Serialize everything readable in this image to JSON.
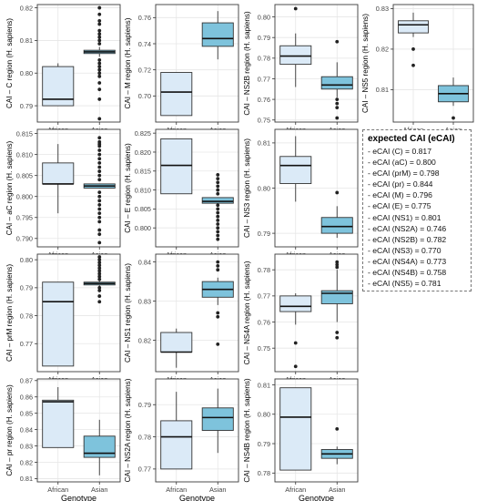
{
  "chart_data": [
    {
      "type": "box",
      "ylabel": "CAI – C region (H. sapiens)",
      "xlabel": "Genotype",
      "categories": [
        "African",
        "Asian"
      ],
      "ylim": [
        0.785,
        0.821
      ],
      "yticks": [
        0.79,
        0.8,
        0.81,
        0.82
      ],
      "tick_labels": [
        "0.79",
        "0.80",
        "0.81",
        "0.82"
      ],
      "series": [
        {
          "category": "African",
          "whislo": 0.79,
          "q1": 0.79,
          "median": 0.792,
          "q3": 0.802,
          "whishi": 0.803,
          "outliers": []
        },
        {
          "category": "Asian",
          "whislo": 0.805,
          "q1": 0.806,
          "median": 0.8065,
          "q3": 0.807,
          "whishi": 0.808,
          "outliers": [
            0.786,
            0.792,
            0.795,
            0.797,
            0.799,
            0.8,
            0.801,
            0.802,
            0.803,
            0.804,
            0.809,
            0.81,
            0.811,
            0.812,
            0.813,
            0.815,
            0.816,
            0.818,
            0.82
          ]
        }
      ]
    },
    {
      "type": "box",
      "ylabel": "CAI – M region (H. sapiens)",
      "xlabel": "Genotype",
      "categories": [
        "African",
        "Asian"
      ],
      "ylim": [
        0.68,
        0.77
      ],
      "yticks": [
        0.7,
        0.72,
        0.74,
        0.76
      ],
      "tick_labels": [
        "0.70",
        "0.72",
        "0.74",
        "0.76"
      ],
      "series": [
        {
          "category": "African",
          "whislo": 0.685,
          "q1": 0.685,
          "median": 0.703,
          "q3": 0.718,
          "whishi": 0.718,
          "outliers": []
        },
        {
          "category": "Asian",
          "whislo": 0.728,
          "q1": 0.738,
          "median": 0.744,
          "q3": 0.756,
          "whishi": 0.765,
          "outliers": []
        }
      ]
    },
    {
      "type": "box",
      "ylabel": "CAI – NS2B region (H. sapiens)",
      "xlabel": "Genotype",
      "categories": [
        "African",
        "Asian"
      ],
      "ylim": [
        0.749,
        0.806
      ],
      "yticks": [
        0.75,
        0.76,
        0.77,
        0.78,
        0.79,
        0.8
      ],
      "tick_labels": [
        "0.75",
        "0.76",
        "0.77",
        "0.78",
        "0.79",
        "0.80"
      ],
      "series": [
        {
          "category": "African",
          "whislo": 0.766,
          "q1": 0.777,
          "median": 0.781,
          "q3": 0.786,
          "whishi": 0.792,
          "outliers": [
            0.804
          ]
        },
        {
          "category": "Asian",
          "whislo": 0.761,
          "q1": 0.765,
          "median": 0.767,
          "q3": 0.771,
          "whishi": 0.778,
          "outliers": [
            0.788,
            0.76,
            0.758,
            0.756,
            0.751
          ]
        }
      ]
    },
    {
      "type": "box",
      "ylabel": "CAI – NS5 region (H. sapiens)",
      "xlabel": "Genotype",
      "categories": [
        "African",
        "Asian"
      ],
      "ylim": [
        0.802,
        0.831
      ],
      "yticks": [
        0.81,
        0.82,
        0.83
      ],
      "tick_labels": [
        "0.81",
        "0.82",
        "0.83"
      ],
      "series": [
        {
          "category": "African",
          "whislo": 0.823,
          "q1": 0.824,
          "median": 0.826,
          "q3": 0.827,
          "whishi": 0.829,
          "outliers": [
            0.82,
            0.816
          ]
        },
        {
          "category": "Asian",
          "whislo": 0.806,
          "q1": 0.807,
          "median": 0.809,
          "q3": 0.811,
          "whishi": 0.813,
          "outliers": [
            0.803
          ]
        }
      ]
    },
    {
      "type": "box",
      "ylabel": "CAI – aC region (H. sapiens)",
      "xlabel": "Genotype",
      "categories": [
        "African",
        "Asian"
      ],
      "ylim": [
        0.788,
        0.816
      ],
      "yticks": [
        0.79,
        0.795,
        0.8,
        0.805,
        0.81,
        0.815
      ],
      "tick_labels": [
        "0.790",
        "0.795",
        "0.800",
        "0.805",
        "0.810",
        "0.815"
      ],
      "series": [
        {
          "category": "African",
          "whislo": 0.796,
          "q1": 0.803,
          "median": 0.803,
          "q3": 0.808,
          "whishi": 0.8125,
          "outliers": []
        },
        {
          "category": "Asian",
          "whislo": 0.802,
          "q1": 0.802,
          "median": 0.8025,
          "q3": 0.803,
          "whishi": 0.803,
          "outliers": [
            0.789,
            0.791,
            0.792,
            0.794,
            0.795,
            0.796,
            0.797,
            0.798,
            0.799,
            0.8,
            0.801,
            0.804,
            0.805,
            0.806,
            0.807,
            0.808,
            0.809,
            0.81,
            0.811,
            0.812,
            0.8125,
            0.813,
            0.814
          ]
        }
      ]
    },
    {
      "type": "box",
      "ylabel": "CAI – E region (H. sapiens)",
      "xlabel": "Genotype",
      "categories": [
        "African",
        "Asian"
      ],
      "ylim": [
        0.795,
        0.826
      ],
      "yticks": [
        0.8,
        0.805,
        0.81,
        0.815,
        0.82,
        0.825
      ],
      "tick_labels": [
        "0.800",
        "0.805",
        "0.810",
        "0.815",
        "0.820",
        "0.825"
      ],
      "series": [
        {
          "category": "African",
          "whislo": 0.809,
          "q1": 0.809,
          "median": 0.8165,
          "q3": 0.8235,
          "whishi": 0.8235,
          "outliers": []
        },
        {
          "category": "Asian",
          "whislo": 0.8065,
          "q1": 0.8065,
          "median": 0.807,
          "q3": 0.808,
          "whishi": 0.808,
          "outliers": [
            0.797,
            0.798,
            0.799,
            0.8,
            0.801,
            0.802,
            0.803,
            0.804,
            0.805,
            0.806,
            0.809,
            0.81,
            0.811,
            0.812,
            0.813,
            0.814
          ]
        }
      ]
    },
    {
      "type": "box",
      "ylabel": "CAI – NS3 region (H. sapiens)",
      "xlabel": "Genotype",
      "categories": [
        "African",
        "Asian"
      ],
      "ylim": [
        0.787,
        0.813
      ],
      "yticks": [
        0.79,
        0.8,
        0.81
      ],
      "tick_labels": [
        "0.79",
        "0.80",
        "0.81"
      ],
      "series": [
        {
          "category": "African",
          "whislo": 0.797,
          "q1": 0.801,
          "median": 0.805,
          "q3": 0.807,
          "whishi": 0.8115,
          "outliers": []
        },
        {
          "category": "Asian",
          "whislo": 0.789,
          "q1": 0.79,
          "median": 0.7915,
          "q3": 0.7935,
          "whishi": 0.796,
          "outliers": [
            0.799
          ]
        }
      ]
    },
    {
      "type": "box",
      "ylabel": "CAI – prM region (H. sapiens)",
      "xlabel": "Genotype",
      "categories": [
        "African",
        "Asian"
      ],
      "ylim": [
        0.76,
        0.802
      ],
      "yticks": [
        0.77,
        0.78,
        0.79,
        0.8
      ],
      "tick_labels": [
        "0.77",
        "0.78",
        "0.79",
        "0.80"
      ],
      "series": [
        {
          "category": "African",
          "whislo": 0.762,
          "q1": 0.762,
          "median": 0.785,
          "q3": 0.792,
          "whishi": 0.792,
          "outliers": []
        },
        {
          "category": "Asian",
          "whislo": 0.7905,
          "q1": 0.791,
          "median": 0.7915,
          "q3": 0.792,
          "whishi": 0.7925,
          "outliers": [
            0.785,
            0.787,
            0.789,
            0.79,
            0.793,
            0.794,
            0.795,
            0.796,
            0.797,
            0.798,
            0.799,
            0.8,
            0.801
          ]
        }
      ]
    },
    {
      "type": "box",
      "ylabel": "CAI – NS1 region (H. sapiens)",
      "xlabel": "Genotype",
      "categories": [
        "African",
        "Asian"
      ],
      "ylim": [
        0.812,
        0.842
      ],
      "yticks": [
        0.82,
        0.83,
        0.84
      ],
      "tick_labels": [
        "0.82",
        "0.83",
        "0.84"
      ],
      "series": [
        {
          "category": "African",
          "whislo": 0.813,
          "q1": 0.817,
          "median": 0.817,
          "q3": 0.822,
          "whishi": 0.823,
          "outliers": []
        },
        {
          "category": "Asian",
          "whislo": 0.829,
          "q1": 0.831,
          "median": 0.833,
          "q3": 0.835,
          "whishi": 0.836,
          "outliers": [
            0.838,
            0.839,
            0.84,
            0.827,
            0.826,
            0.819
          ]
        }
      ]
    },
    {
      "type": "box",
      "ylabel": "CAI – NS4A region (H. sapiens)",
      "xlabel": "Genotype",
      "categories": [
        "African",
        "Asian"
      ],
      "ylim": [
        0.741,
        0.786
      ],
      "yticks": [
        0.75,
        0.76,
        0.77,
        0.78
      ],
      "tick_labels": [
        "0.75",
        "0.76",
        "0.77",
        "0.78"
      ],
      "series": [
        {
          "category": "African",
          "whislo": 0.759,
          "q1": 0.764,
          "median": 0.766,
          "q3": 0.77,
          "whishi": 0.771,
          "outliers": [
            0.752,
            0.743
          ]
        },
        {
          "category": "Asian",
          "whislo": 0.76,
          "q1": 0.767,
          "median": 0.771,
          "q3": 0.772,
          "whishi": 0.78,
          "outliers": [
            0.781,
            0.782,
            0.783,
            0.756,
            0.754
          ]
        }
      ]
    },
    {
      "type": "box",
      "ylabel": "CAI – pr region (H. sapiens)",
      "xlabel": "Genotype",
      "categories": [
        "African",
        "Asian"
      ],
      "ylim": [
        0.808,
        0.871
      ],
      "yticks": [
        0.81,
        0.82,
        0.83,
        0.84,
        0.85,
        0.86,
        0.87
      ],
      "tick_labels": [
        "0.81",
        "0.82",
        "0.83",
        "0.84",
        "0.85",
        "0.86",
        "0.87"
      ],
      "series": [
        {
          "category": "African",
          "whislo": 0.829,
          "q1": 0.829,
          "median": 0.857,
          "q3": 0.858,
          "whishi": 0.866,
          "outliers": []
        },
        {
          "category": "Asian",
          "whislo": 0.812,
          "q1": 0.823,
          "median": 0.8255,
          "q3": 0.836,
          "whishi": 0.846,
          "outliers": []
        }
      ]
    },
    {
      "type": "box",
      "ylabel": "CAI – NS2A region (H. sapiens)",
      "xlabel": "Genotype",
      "categories": [
        "African",
        "Asian"
      ],
      "ylim": [
        0.766,
        0.798
      ],
      "yticks": [
        0.77,
        0.78,
        0.79
      ],
      "tick_labels": [
        "0.77",
        "0.78",
        "0.79"
      ],
      "series": [
        {
          "category": "African",
          "whislo": 0.77,
          "q1": 0.77,
          "median": 0.78,
          "q3": 0.785,
          "whishi": 0.794,
          "outliers": []
        },
        {
          "category": "Asian",
          "whislo": 0.775,
          "q1": 0.782,
          "median": 0.786,
          "q3": 0.789,
          "whishi": 0.795,
          "outliers": []
        }
      ]
    },
    {
      "type": "box",
      "ylabel": "CAI – NS4B region (H. sapiens)",
      "xlabel": "Genotype",
      "categories": [
        "African",
        "Asian"
      ],
      "ylim": [
        0.777,
        0.812
      ],
      "yticks": [
        0.78,
        0.79,
        0.8,
        0.81
      ],
      "tick_labels": [
        "0.78",
        "0.79",
        "0.80",
        "0.81"
      ],
      "series": [
        {
          "category": "African",
          "whislo": 0.781,
          "q1": 0.781,
          "median": 0.799,
          "q3": 0.809,
          "whishi": 0.809,
          "outliers": []
        },
        {
          "category": "Asian",
          "whislo": 0.783,
          "q1": 0.785,
          "median": 0.7865,
          "q3": 0.788,
          "whishi": 0.789,
          "outliers": [
            0.795
          ]
        }
      ]
    }
  ],
  "colors": {
    "african_fill": "#dbeaf7",
    "asian_fill": "#7ec3dc",
    "box_stroke": "#333333",
    "panel_border": "#3a3a3a",
    "grid": "#e6e6e6",
    "point": "#222222"
  },
  "legend": {
    "title": "expected CAI (eCAI)",
    "items": [
      "- eCAI (C) = 0.817",
      "- eCAI (aC) = 0.800",
      "- eCAI (prM) = 0.798",
      "- eCAI (pr) = 0.844",
      "- eCAI (M) = 0.796",
      "- eCAI (E) = 0.775",
      "- eCAI (NS1) = 0.801",
      "- eCAI (NS2A) = 0.746",
      "- eCAI (NS2B) = 0.782",
      "- eCAI (NS3) = 0.770",
      "- eCAI (NS4A) = 0.773",
      "- eCAI (NS4B) = 0.758",
      "- eCAI (NS5) = 0.781"
    ]
  }
}
